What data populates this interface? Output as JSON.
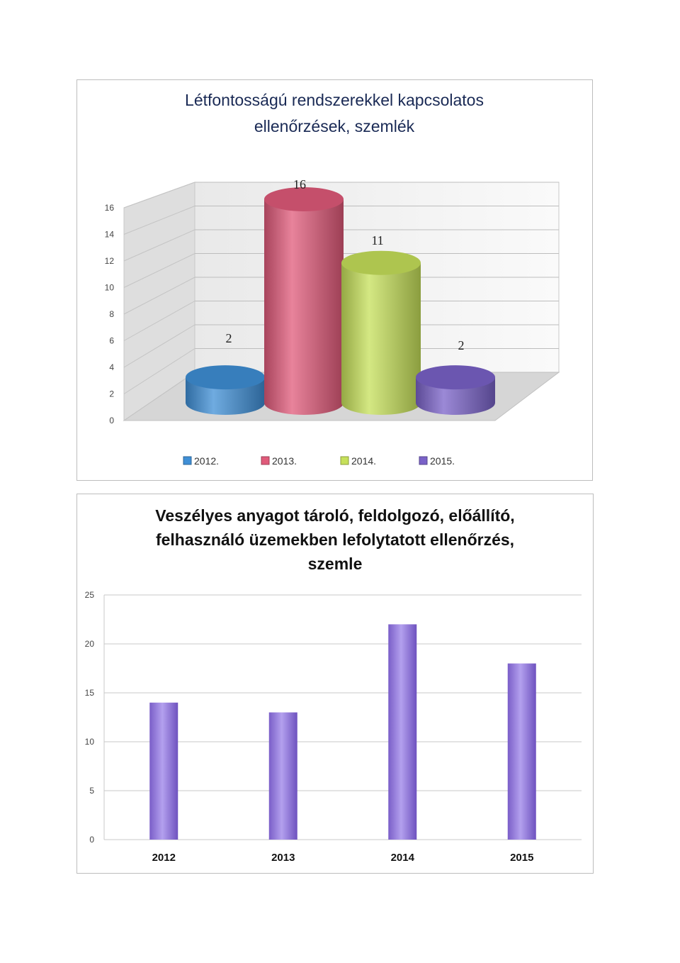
{
  "chart_data": [
    {
      "type": "bar",
      "style": "3d-cylinder",
      "title_lines": [
        "Létfontosságú rendszerekkel kapcsolatos",
        "ellenőrzések, szemlék"
      ],
      "categories": [
        "2012.",
        "2013.",
        "2014.",
        "2015."
      ],
      "values": [
        2,
        16,
        11,
        2
      ],
      "data_labels": [
        "2",
        "16",
        "11",
        "2"
      ],
      "colors": [
        "#3f8fd6",
        "#e05a7a",
        "#c6e05a",
        "#7a62c8"
      ],
      "yticks": [
        "0",
        "2",
        "4",
        "6",
        "8",
        "10",
        "12",
        "14",
        "16"
      ],
      "ylim": [
        0,
        16
      ],
      "grid": true,
      "legend": "bottom"
    },
    {
      "type": "bar",
      "title_lines": [
        "Veszélyes anyagot tároló, feldolgozó, előállító,",
        "felhasználó üzemekben lefolytatott ellenőrzés,",
        "szemle"
      ],
      "categories": [
        "2012",
        "2013",
        "2014",
        "2015"
      ],
      "values": [
        14,
        13,
        22,
        18
      ],
      "color": "#8f74d6",
      "yticks": [
        "0",
        "5",
        "10",
        "15",
        "20",
        "25"
      ],
      "ylim": [
        0,
        25
      ],
      "grid": true,
      "legend": "none"
    }
  ]
}
